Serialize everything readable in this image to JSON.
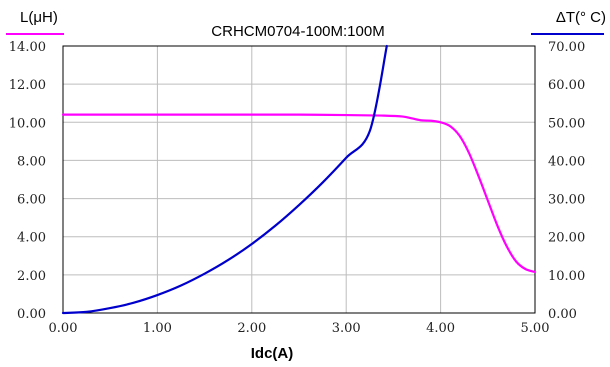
{
  "chart_data": {
    "type": "line",
    "title": "CRHCM0704-100M:100M",
    "xlabel": "Idc(A)",
    "y_left_label": "L(μH)",
    "y_right_label": "ΔT(° C)",
    "xlim": [
      0,
      5
    ],
    "y_left_lim": [
      0,
      14
    ],
    "y_right_lim": [
      0,
      70
    ],
    "x_ticks": [
      "0.00",
      "1.00",
      "2.00",
      "3.00",
      "4.00",
      "5.00"
    ],
    "y_left_ticks": [
      "0.00",
      "2.00",
      "4.00",
      "6.00",
      "8.00",
      "10.00",
      "12.00",
      "14.00"
    ],
    "y_right_ticks": [
      "0.00",
      "10.00",
      "20.00",
      "30.00",
      "40.00",
      "50.00",
      "60.00",
      "70.00"
    ],
    "grid": true,
    "series": [
      {
        "axis": "left",
        "color": "#ff00ff",
        "x": [
          0,
          0.5,
          1.0,
          1.5,
          2.0,
          2.5,
          3.0,
          3.4,
          3.6,
          3.7,
          3.8,
          3.9,
          4.0,
          4.1,
          4.2,
          4.3,
          4.4,
          4.5,
          4.6,
          4.7,
          4.8,
          4.9,
          5.0
        ],
        "values": [
          10.4,
          10.4,
          10.4,
          10.4,
          10.4,
          10.4,
          10.38,
          10.35,
          10.3,
          10.2,
          10.1,
          10.08,
          10.0,
          9.8,
          9.3,
          8.4,
          7.2,
          5.9,
          4.6,
          3.5,
          2.7,
          2.3,
          2.15
        ]
      },
      {
        "axis": "right",
        "color": "#0000cc",
        "x": [
          0,
          0.25,
          0.5,
          0.75,
          1.0,
          1.25,
          1.5,
          1.75,
          2.0,
          2.25,
          2.5,
          2.75,
          3.0,
          3.25,
          3.43
        ],
        "values": [
          0,
          0.3,
          1.3,
          2.7,
          4.7,
          7.2,
          10.3,
          13.9,
          18.1,
          22.9,
          28.3,
          34.2,
          40.7,
          47.7,
          70.0
        ]
      }
    ]
  }
}
